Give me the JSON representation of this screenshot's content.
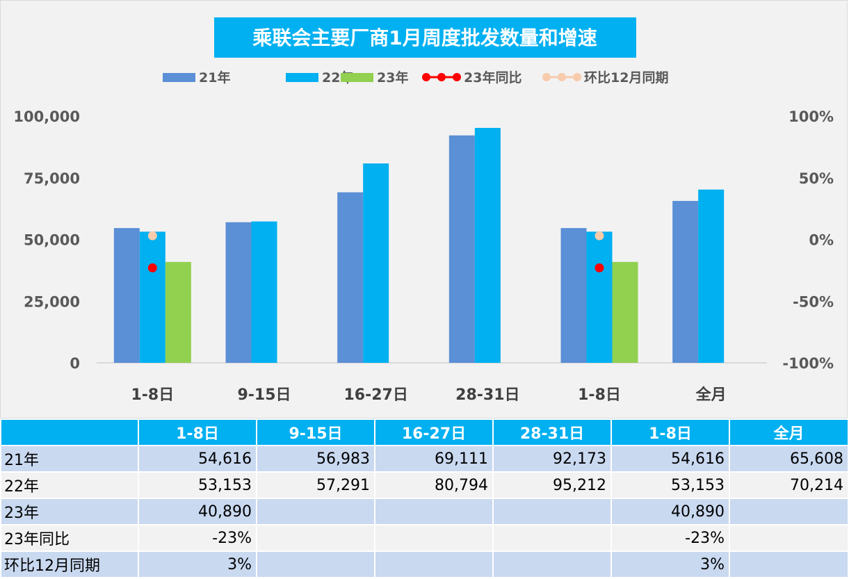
{
  "chart_data": {
    "type": "bar",
    "title": "乘联会主要厂商1月周度批发数量和增速",
    "categories": [
      "1-8日",
      "9-15日",
      "16-27日",
      "28-31日",
      "1-8日",
      "全月"
    ],
    "series": [
      {
        "name": "21年",
        "kind": "bar",
        "axis": "left",
        "color": "#5b8fd6",
        "values": [
          54616,
          56983,
          69111,
          92173,
          54616,
          65608
        ]
      },
      {
        "name": "22年",
        "kind": "bar",
        "axis": "left",
        "color": "#00b0f0",
        "values": [
          53153,
          57291,
          80794,
          95212,
          53153,
          70214
        ]
      },
      {
        "name": "23年",
        "kind": "bar",
        "axis": "left",
        "color": "#92d050",
        "values": [
          40890,
          null,
          null,
          null,
          40890,
          null
        ]
      },
      {
        "name": "23年同比",
        "kind": "line-marker",
        "axis": "right",
        "color": "#ff0000",
        "values": [
          -0.23,
          null,
          null,
          null,
          -0.23,
          null
        ]
      },
      {
        "name": "环比12月同期",
        "kind": "line-marker",
        "axis": "right",
        "color": "#f8cbad",
        "values": [
          0.03,
          null,
          null,
          null,
          0.03,
          null
        ]
      }
    ],
    "ylim": [
      0,
      100000
    ],
    "y_ticks": [
      "0",
      "25,000",
      "50,000",
      "75,000",
      "100,000"
    ],
    "y2lim": [
      -1,
      1
    ],
    "y2_ticks": [
      "-100%",
      "-50%",
      "0%",
      "50%",
      "100%"
    ],
    "legend_position": "top",
    "grid": false
  },
  "table": {
    "headers": [
      "",
      "1-8日",
      "9-15日",
      "16-27日",
      "28-31日",
      "1-8日",
      "全月"
    ],
    "rows": [
      {
        "label": "21年",
        "cells": [
          "54,616",
          "56,983",
          "69,111",
          "92,173",
          "54,616",
          "65,608"
        ]
      },
      {
        "label": "22年",
        "cells": [
          "53,153",
          "57,291",
          "80,794",
          "95,212",
          "53,153",
          "70,214"
        ]
      },
      {
        "label": "23年",
        "cells": [
          "40,890",
          "",
          "",
          "",
          "40,890",
          ""
        ]
      },
      {
        "label": "23年同比",
        "cells": [
          "-23%",
          "",
          "",
          "",
          "-23%",
          ""
        ]
      },
      {
        "label": "环比12月同期",
        "cells": [
          "3%",
          "",
          "",
          "",
          "3%",
          ""
        ]
      }
    ]
  },
  "colors": {
    "title_bg": "#00b0f0",
    "panel_bg": "#f2f2f2",
    "header_bg": "#00b0f0",
    "row_odd": "#c9d9f0",
    "row_even": "#f2f2f2"
  }
}
